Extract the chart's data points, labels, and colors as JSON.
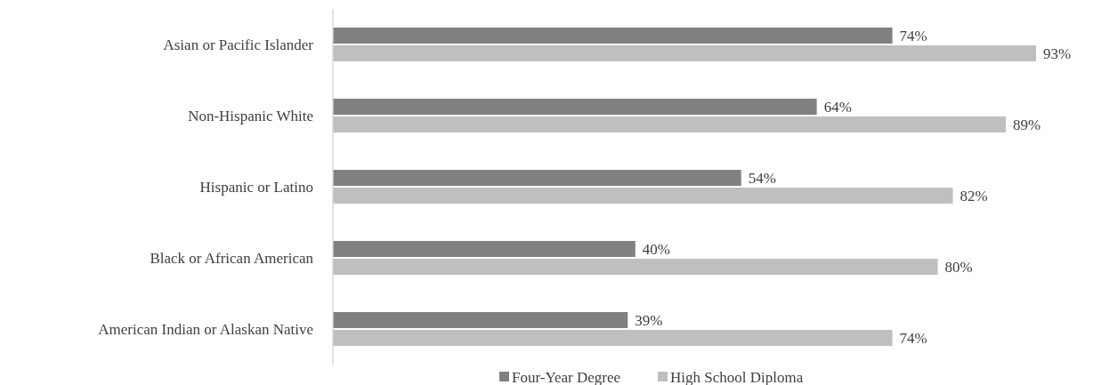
{
  "chart_data": {
    "type": "bar",
    "orientation": "horizontal",
    "categories": [
      "Asian or Pacific Islander",
      "Non-Hispanic White",
      "Hispanic or Latino",
      "Black or African American",
      "American Indian or Alaskan Native"
    ],
    "series": [
      {
        "name": "Four-Year Degree",
        "color": "#808080",
        "values": [
          74,
          64,
          54,
          40,
          39
        ],
        "value_labels": [
          "74%",
          "64%",
          "54%",
          "40%",
          "39%"
        ]
      },
      {
        "name": "High School Diploma",
        "color": "#bfbfbf",
        "values": [
          93,
          89,
          82,
          80,
          74
        ],
        "value_labels": [
          "93%",
          "89%",
          "82%",
          "80%",
          "74%"
        ]
      }
    ],
    "tick_labels": "y",
    "legend": "bottom"
  }
}
